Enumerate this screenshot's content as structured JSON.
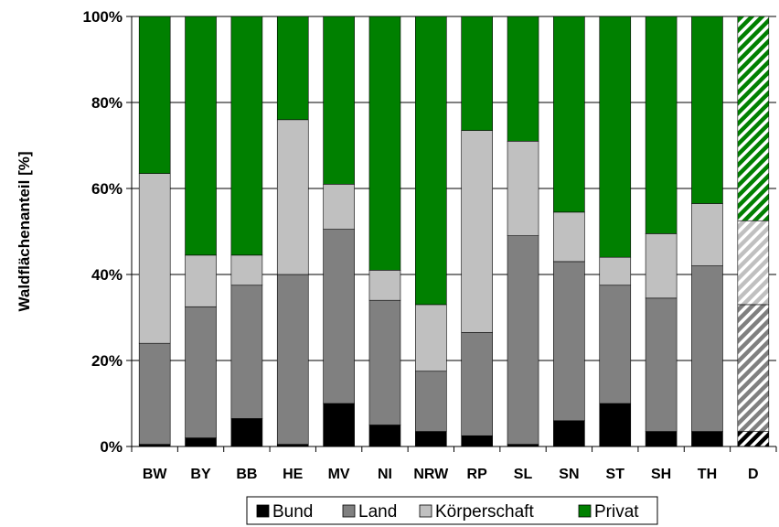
{
  "chart_data": {
    "type": "bar",
    "stacked": true,
    "normalized": true,
    "ylabel": "Waldflächenanteil [%]",
    "xlabel": "",
    "ylim": [
      0,
      100
    ],
    "yticks": [
      "0%",
      "20%",
      "40%",
      "60%",
      "80%",
      "100%"
    ],
    "ytick_values": [
      0,
      20,
      40,
      60,
      80,
      100
    ],
    "grid": true,
    "legend_position": "bottom",
    "categories": [
      "BW",
      "BY",
      "BB",
      "HE",
      "MV",
      "NI",
      "NRW",
      "RP",
      "SL",
      "SN",
      "ST",
      "SH",
      "TH",
      "D"
    ],
    "hatched_category": "D",
    "series": [
      {
        "name": "Bund",
        "color": "#000000",
        "values": [
          0.5,
          2,
          6.5,
          0.5,
          10,
          5,
          3.5,
          2.5,
          0.5,
          6,
          10,
          3.5,
          3.5,
          3.5
        ]
      },
      {
        "name": "Land",
        "color": "#808080",
        "values": [
          23.5,
          30.5,
          31,
          39.5,
          40.5,
          29,
          14,
          24,
          48.5,
          37,
          27.5,
          31,
          38.5,
          29.5
        ]
      },
      {
        "name": "Körperschaft",
        "color": "#c0c0c0",
        "values": [
          39.5,
          12,
          7,
          36,
          10.5,
          7,
          15.5,
          47,
          22,
          11.5,
          6.5,
          15,
          14.5,
          19.5
        ]
      },
      {
        "name": "Privat",
        "color": "#008000",
        "values": [
          36.5,
          55.5,
          55.5,
          24,
          39,
          59,
          67,
          26.5,
          29,
          45.5,
          56,
          50.5,
          43.5,
          47.5
        ]
      }
    ]
  }
}
